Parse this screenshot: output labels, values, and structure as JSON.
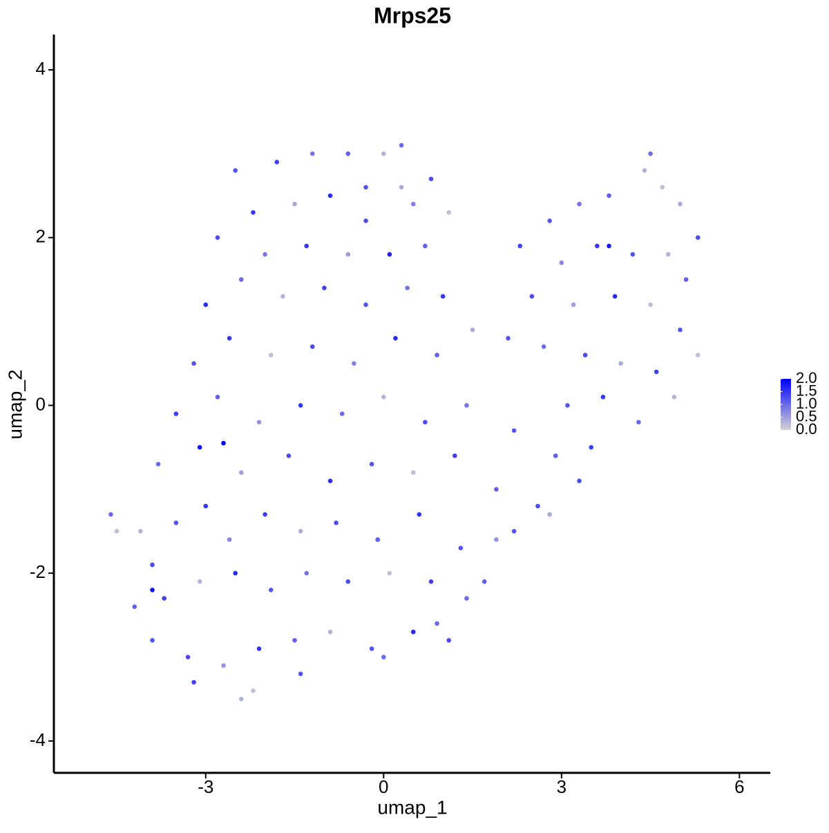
{
  "chart_data": {
    "type": "scatter",
    "title": "Mrps25",
    "x_label": "umap_1",
    "y_label": "umap_2",
    "xlim": [
      -5.56,
      6.52
    ],
    "ylim": [
      -4.38,
      4.42
    ],
    "xticks": [
      -3,
      0,
      3,
      6
    ],
    "yticks": [
      -4,
      -2,
      0,
      2,
      4
    ],
    "color_low": "#d3d3d3",
    "color_high": "#0000ff",
    "colorbar_lim": [
      0,
      2
    ],
    "colorbar_ticks": [
      {
        "value": 0,
        "label": "0.0"
      },
      {
        "value": 0.5,
        "label": "0.5"
      },
      {
        "value": 1,
        "label": "1.0"
      },
      {
        "value": 1.5,
        "label": "1.5"
      },
      {
        "value": 2,
        "label": "2.0"
      }
    ],
    "x": [
      -2.5,
      -1.8,
      -1.2,
      -0.6,
      0,
      0.3,
      0.8,
      -2.2,
      -1.5,
      -0.9,
      -0.3,
      0.5,
      1.1,
      -2.8,
      -2.0,
      -1.3,
      -0.6,
      0.1,
      0.7,
      -3.0,
      -2.4,
      -1.7,
      -1.0,
      -0.3,
      0.4,
      1.0,
      -3.2,
      -2.6,
      -1.9,
      -1.2,
      -0.5,
      0.2,
      0.9,
      1.5,
      2.1,
      -3.5,
      -2.8,
      -2.1,
      -1.4,
      -0.7,
      0.0,
      0.7,
      1.4,
      2.2,
      -3.8,
      -3.1,
      -2.4,
      -1.6,
      -0.9,
      -0.2,
      0.5,
      1.2,
      1.9,
      2.6,
      -4.6,
      -4.5,
      -4.1,
      -3.9,
      -3.5,
      -3.0,
      -2.6,
      -2.0,
      -1.4,
      -0.8,
      -0.1,
      0.6,
      1.3,
      1.9,
      -4.2,
      -3.7,
      -3.1,
      -2.5,
      -1.9,
      -1.3,
      -0.6,
      0.1,
      0.8,
      1.4,
      -3.9,
      -3.3,
      -2.7,
      -2.1,
      -1.5,
      -0.9,
      -0.2,
      0.5,
      0.9,
      -3.2,
      -2.4,
      -2.2,
      -1.4,
      0.0,
      -2.7,
      -3.9,
      2.3,
      2.8,
      3.3,
      3.8,
      4.4,
      4.5,
      4.7,
      5.0,
      5.3,
      3.0,
      3.6,
      4.2,
      4.8,
      5.1,
      2.5,
      3.2,
      3.9,
      4.5,
      5.0,
      2.7,
      3.4,
      4.0,
      4.6,
      5.3,
      3.1,
      3.7,
      4.3,
      4.9,
      2.9,
      3.5,
      3.3,
      2.2,
      2.8,
      1.7,
      1.1,
      3.8,
      0.3,
      -0.3
    ],
    "y": [
      2.8,
      2.9,
      3.0,
      3.0,
      3.0,
      3.1,
      2.7,
      2.3,
      2.4,
      2.5,
      2.6,
      2.4,
      2.3,
      2.0,
      1.8,
      1.9,
      1.8,
      1.8,
      1.9,
      1.2,
      1.5,
      1.3,
      1.4,
      1.2,
      1.4,
      1.3,
      0.5,
      0.8,
      0.6,
      0.7,
      0.5,
      0.8,
      0.6,
      0.9,
      0.8,
      -0.1,
      0.1,
      -0.2,
      0.0,
      -0.1,
      0.1,
      -0.2,
      0.0,
      -0.3,
      -0.7,
      -0.5,
      -0.8,
      -0.6,
      -0.9,
      -0.7,
      -0.8,
      -0.6,
      -1.0,
      -1.2,
      -1.3,
      -1.5,
      -1.5,
      -1.9,
      -1.4,
      -1.2,
      -1.6,
      -1.3,
      -1.5,
      -1.4,
      -1.6,
      -1.3,
      -1.7,
      -1.6,
      -2.4,
      -2.3,
      -2.1,
      -2.0,
      -2.2,
      -2.0,
      -2.1,
      -2.0,
      -2.1,
      -2.3,
      -2.8,
      -3.0,
      -3.1,
      -2.9,
      -2.8,
      -2.7,
      -2.9,
      -2.7,
      -2.6,
      -3.3,
      -3.5,
      -3.4,
      -3.2,
      -3.0,
      -0.45,
      -2.2,
      1.9,
      2.2,
      2.4,
      2.5,
      2.8,
      3.0,
      2.6,
      2.4,
      2.0,
      1.7,
      1.9,
      1.8,
      1.8,
      1.5,
      1.3,
      1.2,
      1.3,
      1.2,
      0.9,
      0.7,
      0.6,
      0.5,
      0.4,
      0.6,
      0.0,
      0.1,
      -0.2,
      0.1,
      -0.6,
      -0.5,
      -0.9,
      -1.5,
      -1.3,
      -2.1,
      -2.8,
      1.9,
      2.6,
      2.2
    ],
    "values": [
      1.2,
      1.4,
      0.9,
      1.1,
      0.3,
      1.0,
      1.3,
      1.5,
      0.4,
      1.6,
      1.2,
      0.8,
      0.2,
      1.3,
      0.9,
      1.5,
      0.5,
      1.7,
      1.1,
      1.6,
      1.0,
      0.3,
      1.4,
      1.2,
      0.9,
      1.5,
      1.2,
      1.5,
      0.2,
      1.3,
      0.8,
      1.6,
      1.1,
      0.4,
      1.2,
      1.4,
      1.1,
      0.6,
      1.5,
      1.0,
      0.3,
      1.3,
      0.9,
      1.2,
      1.0,
      1.8,
      0.5,
      1.3,
      1.6,
      1.2,
      0.2,
      1.4,
      1.1,
      1.3,
      1.0,
      0.2,
      0.3,
      1.3,
      1.2,
      1.5,
      0.7,
      1.4,
      0.4,
      1.3,
      1.1,
      1.5,
      1.2,
      0.6,
      1.1,
      1.4,
      0.3,
      1.6,
      1.2,
      0.9,
      1.3,
      0.2,
      1.4,
      1.0,
      1.2,
      1.3,
      0.6,
      1.5,
      1.1,
      0.3,
      1.2,
      1.6,
      1.0,
      1.4,
      0.3,
      0.2,
      1.2,
      1.0,
      2.0,
      1.9,
      1.4,
      1.2,
      0.9,
      1.1,
      0.3,
      1.0,
      0.2,
      0.4,
      1.3,
      0.7,
      1.5,
      1.2,
      0.3,
      1.1,
      1.3,
      0.5,
      1.6,
      0.2,
      1.2,
      1.0,
      1.3,
      0.4,
      1.4,
      0.2,
      1.2,
      1.5,
      1.0,
      0.3,
      1.1,
      1.4,
      1.3,
      1.2,
      0.4,
      1.1,
      1.3,
      1.8,
      0.4,
      1.3
    ]
  }
}
